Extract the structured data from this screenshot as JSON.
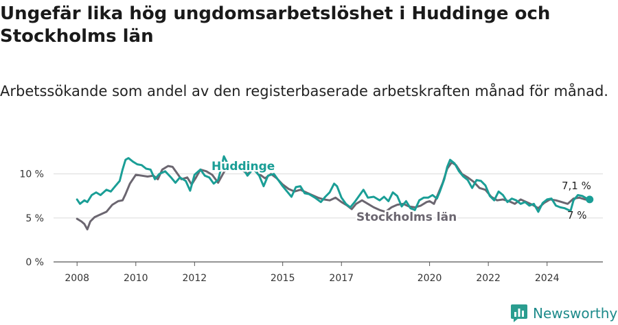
{
  "header": {
    "title": "Ungefär lika hög ungdomsarbetslöshet i Huddinge och Stockholms län",
    "subtitle": "Arbetssökande som andel av den registerbaserade arbetskraften månad för månad."
  },
  "brand": {
    "name": "Newsworthy",
    "icon": "newsworthy-logo-icon",
    "color": "#2a9d8f"
  },
  "chart_data": {
    "type": "line",
    "title": "Ungefär lika hög ungdomsarbetslöshet i Huddinge och Stockholms län",
    "subtitle": "Arbetssökande som andel av den registerbaserade arbetskraften månad för månad.",
    "xlabel": "",
    "ylabel": "",
    "xlim": [
      2007.2,
      2025.9
    ],
    "ylim": [
      0,
      12
    ],
    "x_ticks": [
      2008,
      2010,
      2012,
      2015,
      2017,
      2020,
      2022,
      2024
    ],
    "x_tick_labels": [
      "2008",
      "2010",
      "2012",
      "2015",
      "2017",
      "2020",
      "2022",
      "2024"
    ],
    "y_ticks": [
      0,
      5,
      10
    ],
    "y_tick_labels": [
      "0 %",
      "5 %",
      "10 %"
    ],
    "grid": true,
    "legend": "inline labels",
    "series": [
      {
        "name": "Stockholms län",
        "color": "#6b6670",
        "label_text": "Stockholms län",
        "end_label": "7 %",
        "points": [
          [
            2008.0,
            4.9
          ],
          [
            2008.15,
            4.6
          ],
          [
            2008.25,
            4.3
          ],
          [
            2008.35,
            3.7
          ],
          [
            2008.45,
            4.6
          ],
          [
            2008.6,
            5.1
          ],
          [
            2008.8,
            5.4
          ],
          [
            2009.0,
            5.7
          ],
          [
            2009.2,
            6.5
          ],
          [
            2009.4,
            6.9
          ],
          [
            2009.55,
            7.0
          ],
          [
            2009.65,
            7.7
          ],
          [
            2009.8,
            8.9
          ],
          [
            2010.0,
            9.9
          ],
          [
            2010.2,
            9.8
          ],
          [
            2010.4,
            9.7
          ],
          [
            2010.6,
            9.8
          ],
          [
            2010.75,
            9.4
          ],
          [
            2010.9,
            10.5
          ],
          [
            2011.1,
            10.9
          ],
          [
            2011.25,
            10.8
          ],
          [
            2011.4,
            10.1
          ],
          [
            2011.55,
            9.4
          ],
          [
            2011.75,
            9.6
          ],
          [
            2011.9,
            8.8
          ],
          [
            2012.05,
            9.6
          ],
          [
            2012.2,
            10.5
          ],
          [
            2012.4,
            10.3
          ],
          [
            2012.6,
            9.9
          ],
          [
            2012.8,
            9.0
          ],
          [
            2013.0,
            10.2
          ],
          [
            2013.2,
            11.0
          ],
          [
            2013.4,
            10.8
          ],
          [
            2013.6,
            10.5
          ],
          [
            2013.8,
            10.0
          ],
          [
            2014.0,
            10.5
          ],
          [
            2014.2,
            10.0
          ],
          [
            2014.4,
            9.5
          ],
          [
            2014.6,
            10.0
          ],
          [
            2014.8,
            9.5
          ],
          [
            2015.0,
            8.8
          ],
          [
            2015.2,
            8.3
          ],
          [
            2015.4,
            8.0
          ],
          [
            2015.6,
            8.2
          ],
          [
            2015.8,
            7.9
          ],
          [
            2016.0,
            7.6
          ],
          [
            2016.2,
            7.3
          ],
          [
            2016.4,
            7.1
          ],
          [
            2016.6,
            7.0
          ],
          [
            2016.8,
            7.3
          ],
          [
            2017.0,
            6.8
          ],
          [
            2017.2,
            6.4
          ],
          [
            2017.35,
            6.0
          ],
          [
            2017.5,
            6.6
          ],
          [
            2017.7,
            7.0
          ],
          [
            2017.9,
            6.6
          ],
          [
            2018.1,
            6.2
          ],
          [
            2018.3,
            5.9
          ],
          [
            2018.5,
            5.7
          ],
          [
            2018.7,
            6.2
          ],
          [
            2018.9,
            6.5
          ],
          [
            2019.1,
            6.6
          ],
          [
            2019.3,
            6.3
          ],
          [
            2019.5,
            6.2
          ],
          [
            2019.7,
            6.4
          ],
          [
            2019.9,
            6.8
          ],
          [
            2020.0,
            6.9
          ],
          [
            2020.15,
            6.6
          ],
          [
            2020.3,
            7.8
          ],
          [
            2020.45,
            9.0
          ],
          [
            2020.6,
            10.6
          ],
          [
            2020.75,
            11.3
          ],
          [
            2020.9,
            11.0
          ],
          [
            2021.1,
            10.0
          ],
          [
            2021.3,
            9.6
          ],
          [
            2021.5,
            9.1
          ],
          [
            2021.7,
            8.4
          ],
          [
            2021.9,
            8.2
          ],
          [
            2022.1,
            7.4
          ],
          [
            2022.3,
            7.0
          ],
          [
            2022.5,
            7.1
          ],
          [
            2022.7,
            6.9
          ],
          [
            2022.9,
            6.6
          ],
          [
            2023.1,
            7.1
          ],
          [
            2023.3,
            6.8
          ],
          [
            2023.5,
            6.5
          ],
          [
            2023.7,
            6.1
          ],
          [
            2023.9,
            6.7
          ],
          [
            2024.1,
            7.1
          ],
          [
            2024.3,
            7.0
          ],
          [
            2024.5,
            6.8
          ],
          [
            2024.7,
            6.6
          ],
          [
            2024.9,
            7.2
          ],
          [
            2025.1,
            7.3
          ],
          [
            2025.3,
            7.1
          ],
          [
            2025.45,
            7.0
          ]
        ]
      },
      {
        "name": "Huddinge",
        "color": "#1a9e96",
        "label_text": "Huddinge",
        "end_label": "7,1 %",
        "points": [
          [
            2008.0,
            7.1
          ],
          [
            2008.1,
            6.6
          ],
          [
            2008.25,
            7.0
          ],
          [
            2008.35,
            6.8
          ],
          [
            2008.5,
            7.6
          ],
          [
            2008.65,
            7.9
          ],
          [
            2008.8,
            7.6
          ],
          [
            2009.0,
            8.2
          ],
          [
            2009.15,
            8.0
          ],
          [
            2009.3,
            8.6
          ],
          [
            2009.45,
            9.2
          ],
          [
            2009.55,
            10.5
          ],
          [
            2009.65,
            11.6
          ],
          [
            2009.75,
            11.8
          ],
          [
            2009.9,
            11.4
          ],
          [
            2010.05,
            11.1
          ],
          [
            2010.2,
            11.0
          ],
          [
            2010.35,
            10.6
          ],
          [
            2010.5,
            10.5
          ],
          [
            2010.65,
            9.4
          ],
          [
            2010.8,
            10.0
          ],
          [
            2011.0,
            10.3
          ],
          [
            2011.2,
            9.6
          ],
          [
            2011.35,
            9.0
          ],
          [
            2011.5,
            9.6
          ],
          [
            2011.7,
            9.2
          ],
          [
            2011.85,
            8.1
          ],
          [
            2012.0,
            9.9
          ],
          [
            2012.2,
            10.5
          ],
          [
            2012.35,
            9.8
          ],
          [
            2012.5,
            9.6
          ],
          [
            2012.65,
            8.9
          ],
          [
            2012.8,
            9.3
          ],
          [
            2012.9,
            10.6
          ],
          [
            2013.0,
            12.0
          ],
          [
            2013.15,
            11.0
          ],
          [
            2013.4,
            10.5
          ],
          [
            2013.6,
            10.9
          ],
          [
            2013.8,
            9.8
          ],
          [
            2014.0,
            10.6
          ],
          [
            2014.2,
            9.8
          ],
          [
            2014.35,
            8.6
          ],
          [
            2014.5,
            9.8
          ],
          [
            2014.7,
            10.0
          ],
          [
            2014.85,
            9.3
          ],
          [
            2015.0,
            8.6
          ],
          [
            2015.15,
            8.0
          ],
          [
            2015.3,
            7.4
          ],
          [
            2015.45,
            8.5
          ],
          [
            2015.6,
            8.6
          ],
          [
            2015.75,
            7.8
          ],
          [
            2015.9,
            7.7
          ],
          [
            2016.1,
            7.3
          ],
          [
            2016.3,
            6.8
          ],
          [
            2016.45,
            7.4
          ],
          [
            2016.6,
            7.9
          ],
          [
            2016.75,
            8.9
          ],
          [
            2016.85,
            8.6
          ],
          [
            2017.0,
            7.3
          ],
          [
            2017.15,
            6.6
          ],
          [
            2017.3,
            6.2
          ],
          [
            2017.45,
            6.8
          ],
          [
            2017.6,
            7.5
          ],
          [
            2017.75,
            8.2
          ],
          [
            2017.9,
            7.3
          ],
          [
            2018.1,
            7.4
          ],
          [
            2018.3,
            7.0
          ],
          [
            2018.45,
            7.4
          ],
          [
            2018.6,
            6.9
          ],
          [
            2018.75,
            7.9
          ],
          [
            2018.9,
            7.5
          ],
          [
            2019.05,
            6.3
          ],
          [
            2019.2,
            6.9
          ],
          [
            2019.35,
            6.1
          ],
          [
            2019.5,
            5.9
          ],
          [
            2019.65,
            7.0
          ],
          [
            2019.8,
            7.3
          ],
          [
            2019.95,
            7.3
          ],
          [
            2020.1,
            7.6
          ],
          [
            2020.25,
            7.2
          ],
          [
            2020.35,
            8.0
          ],
          [
            2020.5,
            9.4
          ],
          [
            2020.6,
            10.8
          ],
          [
            2020.7,
            11.6
          ],
          [
            2020.85,
            11.2
          ],
          [
            2021.0,
            10.3
          ],
          [
            2021.15,
            9.7
          ],
          [
            2021.3,
            9.3
          ],
          [
            2021.45,
            8.4
          ],
          [
            2021.6,
            9.3
          ],
          [
            2021.75,
            9.2
          ],
          [
            2021.9,
            8.7
          ],
          [
            2022.05,
            7.5
          ],
          [
            2022.2,
            7.0
          ],
          [
            2022.35,
            8.0
          ],
          [
            2022.5,
            7.6
          ],
          [
            2022.65,
            6.8
          ],
          [
            2022.8,
            7.2
          ],
          [
            2022.95,
            7.0
          ],
          [
            2023.1,
            6.6
          ],
          [
            2023.25,
            6.8
          ],
          [
            2023.4,
            6.4
          ],
          [
            2023.55,
            6.6
          ],
          [
            2023.7,
            5.7
          ],
          [
            2023.85,
            6.7
          ],
          [
            2024.0,
            7.1
          ],
          [
            2024.15,
            7.2
          ],
          [
            2024.3,
            6.4
          ],
          [
            2024.45,
            6.2
          ],
          [
            2024.6,
            6.1
          ],
          [
            2024.8,
            5.8
          ],
          [
            2024.9,
            7.0
          ],
          [
            2025.05,
            7.6
          ],
          [
            2025.2,
            7.5
          ],
          [
            2025.35,
            7.2
          ],
          [
            2025.45,
            7.1
          ]
        ]
      }
    ]
  }
}
